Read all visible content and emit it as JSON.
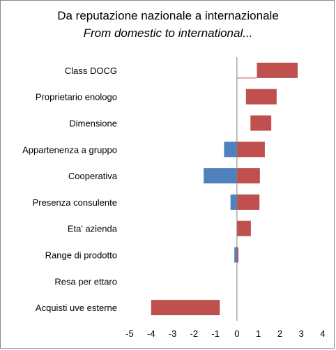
{
  "chart_data": {
    "type": "bar",
    "orientation": "horizontal",
    "subtype": "floating",
    "title": "Da reputazione  nazionale  a internazionale",
    "subtitle": "From domestic  to international...",
    "categories": [
      "Class DOCG",
      "Proprietario enologo",
      "Dimensione",
      "Appartenenza a gruppo",
      "Cooperativa",
      "Presenza consulente",
      "Eta' azienda",
      "Range di prodotto",
      "Resa per ettaro",
      "Acquisti uve esterne"
    ],
    "bars": [
      {
        "from": 0.93,
        "to": 2.83,
        "color": "#c0504d"
      },
      {
        "from": 0.42,
        "to": 1.85,
        "color": "#c0504d"
      },
      {
        "from": 0.63,
        "to": 1.6,
        "color": "#c0504d"
      },
      {
        "from": -0.6,
        "to": 0.0,
        "color": "#4f81bd"
      },
      {
        "from": 0.0,
        "to": 1.3,
        "color": "#c0504d"
      },
      {
        "from": -1.55,
        "to": 0.0,
        "color": "#4f81bd"
      },
      {
        "from": 0.0,
        "to": 1.07,
        "color": "#c0504d"
      },
      {
        "from": -0.3,
        "to": 0.0,
        "color": "#4f81bd"
      },
      {
        "from": 0.0,
        "to": 1.05,
        "color": "#c0504d"
      },
      {
        "from": 0.0,
        "to": 0.65,
        "color": "#c0504d"
      },
      {
        "from": -0.12,
        "to": 0.0,
        "color": "#4f81bd"
      },
      {
        "from": 0.0,
        "to": 0.07,
        "color": "#c0504d"
      },
      {
        "from": -4.0,
        "to": -0.8,
        "color": "#c0504d"
      }
    ],
    "bar_rows": [
      0,
      1,
      2,
      3,
      3,
      4,
      4,
      5,
      5,
      6,
      7,
      7,
      9
    ],
    "connector": {
      "row": 0,
      "from": 0.0,
      "to": 0.93
    },
    "xlim": [
      -5,
      4
    ],
    "xticks": [
      "-5",
      "-4",
      "-3",
      "-2",
      "-1",
      "0",
      "1",
      "2",
      "3",
      "4"
    ],
    "grid": false,
    "colors": {
      "positive": "#c0504d",
      "negative": "#4f81bd",
      "axis": "#808080"
    }
  }
}
